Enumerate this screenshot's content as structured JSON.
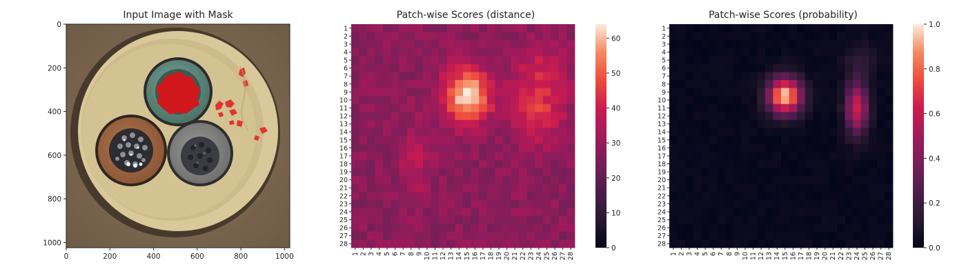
{
  "chart_data": [
    {
      "type": "image",
      "title": "Input Image with Mask",
      "xlim": [
        0,
        1024
      ],
      "ylim": [
        1024,
        0
      ],
      "xticks": [
        0,
        200,
        400,
        600,
        800,
        1000
      ],
      "yticks": [
        0,
        200,
        400,
        600,
        800,
        1000
      ],
      "content": "Top-down cross-section of a cable with three conductors (green-sheathed top, brown-sheathed left, grey-sheathed right) inside a cream insulation ring on brown background. Red mask overlays the top conductor core and a crack region on the right of the ring.",
      "colors": {
        "background": "#7a6651",
        "ring": "#d9c99a",
        "green": "#5f8a7f",
        "brown": "#a16541",
        "grey": "#8d8d8d",
        "mask": "#d0181c"
      }
    },
    {
      "type": "heatmap",
      "title": "Patch-wise Scores (distance)",
      "rows": 28,
      "cols": 28,
      "tick_labels": [
        "1",
        "2",
        "3",
        "4",
        "5",
        "6",
        "7",
        "8",
        "9",
        "10",
        "11",
        "12",
        "13",
        "14",
        "15",
        "16",
        "17",
        "18",
        "19",
        "20",
        "21",
        "22",
        "23",
        "24",
        "25",
        "26",
        "27",
        "28"
      ],
      "colorbar": {
        "min": 0,
        "max": 64,
        "ticks": [
          0,
          10,
          20,
          30,
          40,
          50,
          60
        ]
      },
      "baseline": 28,
      "noise": 4,
      "blobs": [
        {
          "row": 9.5,
          "col": 15,
          "amp": 36,
          "rsd": 2.3,
          "csd": 2.1
        },
        {
          "row": 11,
          "col": 24,
          "amp": 17,
          "rsd": 3.0,
          "csd": 2.2
        },
        {
          "row": 5.5,
          "col": 24.5,
          "amp": 8,
          "rsd": 2.0,
          "csd": 2.5
        },
        {
          "row": 18,
          "col": 8.5,
          "amp": 9,
          "rsd": 3.0,
          "csd": 1.2
        }
      ]
    },
    {
      "type": "heatmap",
      "title": "Patch-wise Scores (probability)",
      "rows": 28,
      "cols": 28,
      "tick_labels": [
        "1",
        "2",
        "3",
        "4",
        "5",
        "6",
        "7",
        "8",
        "9",
        "10",
        "11",
        "12",
        "13",
        "14",
        "15",
        "16",
        "17",
        "18",
        "19",
        "20",
        "21",
        "22",
        "23",
        "24",
        "25",
        "26",
        "27",
        "28"
      ],
      "colorbar": {
        "min": 0,
        "max": 1.0,
        "ticks": [
          "0.0",
          "0.2",
          "0.4",
          "0.6",
          "0.8",
          "1.0"
        ]
      },
      "baseline": 0.02,
      "noise": 0.02,
      "blobs": [
        {
          "row": 9.5,
          "col": 15,
          "amp": 0.95,
          "rsd": 1.6,
          "csd": 1.5
        },
        {
          "row": 11,
          "col": 24,
          "amp": 0.6,
          "rsd": 2.3,
          "csd": 1.0
        },
        {
          "row": 5,
          "col": 24.5,
          "amp": 0.12,
          "rsd": 1.5,
          "csd": 1.5
        }
      ]
    }
  ]
}
